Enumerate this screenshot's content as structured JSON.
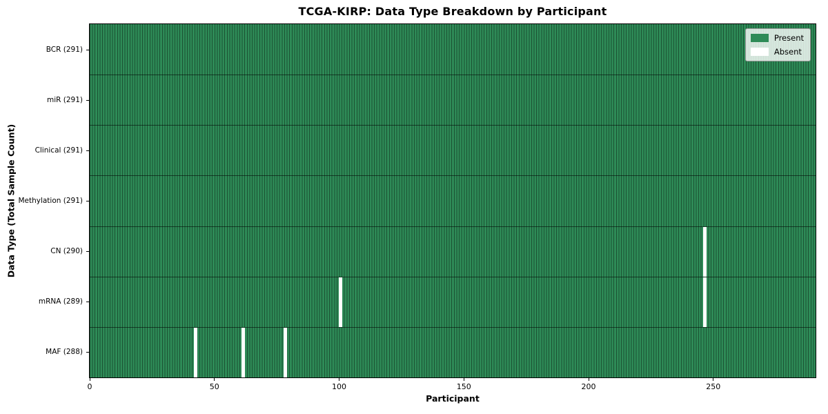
{
  "chart_data": {
    "type": "heatmap",
    "title": "TCGA-KIRP: Data Type Breakdown by Participant",
    "xlabel": "Participant",
    "ylabel": "Data Type (Total Sample Count)",
    "n_participants": 291,
    "x_axis": {
      "min": 0,
      "max": 291,
      "ticks": [
        0,
        50,
        100,
        150,
        200,
        250
      ]
    },
    "rows": [
      {
        "data_type": "BCR",
        "label": "BCR (291)",
        "present_count": 291,
        "absent_participants": []
      },
      {
        "data_type": "miR",
        "label": "miR (291)",
        "present_count": 291,
        "absent_participants": []
      },
      {
        "data_type": "Clinical",
        "label": "Clinical (291)",
        "present_count": 291,
        "absent_participants": []
      },
      {
        "data_type": "Methylation",
        "label": "Methylation (291)",
        "present_count": 291,
        "absent_participants": []
      },
      {
        "data_type": "CN",
        "label": "CN (290)",
        "present_count": 290,
        "absent_participants": [
          246
        ]
      },
      {
        "data_type": "mRNA",
        "label": "mRNA (289)",
        "present_count": 289,
        "absent_participants": [
          100,
          246
        ]
      },
      {
        "data_type": "MAF",
        "label": "MAF (288)",
        "present_count": 288,
        "absent_participants": [
          42,
          61,
          78
        ]
      }
    ],
    "legend": [
      {
        "label": "Present",
        "color": "#2e8b57"
      },
      {
        "label": "Absent",
        "color": "#ffffff"
      }
    ],
    "colors": {
      "present": "#2e8b57",
      "absent": "#ffffff",
      "cell_edge": "rgba(0,0,0,0.42)",
      "row_separator": "rgba(0,0,0,0.55)",
      "spine": "#000000"
    },
    "legend_position": "upper right",
    "grid": false
  }
}
